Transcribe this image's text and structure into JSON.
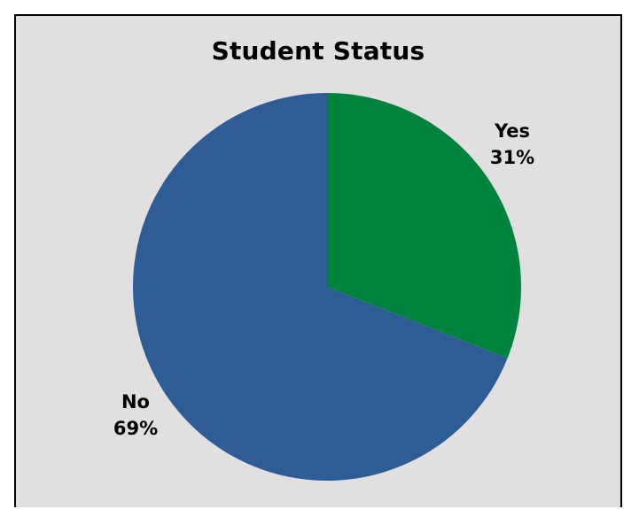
{
  "chart_data": {
    "type": "pie",
    "title": "Student Status",
    "slices": [
      {
        "name": "Yes",
        "value": 31,
        "label": "31%",
        "color": "#00843d"
      },
      {
        "name": "No",
        "value": 69,
        "label": "69%",
        "color": "#2e5d95"
      }
    ],
    "start_angle_deg": 0,
    "direction": "clockwise",
    "legend": "none",
    "data_labels": "outside"
  }
}
